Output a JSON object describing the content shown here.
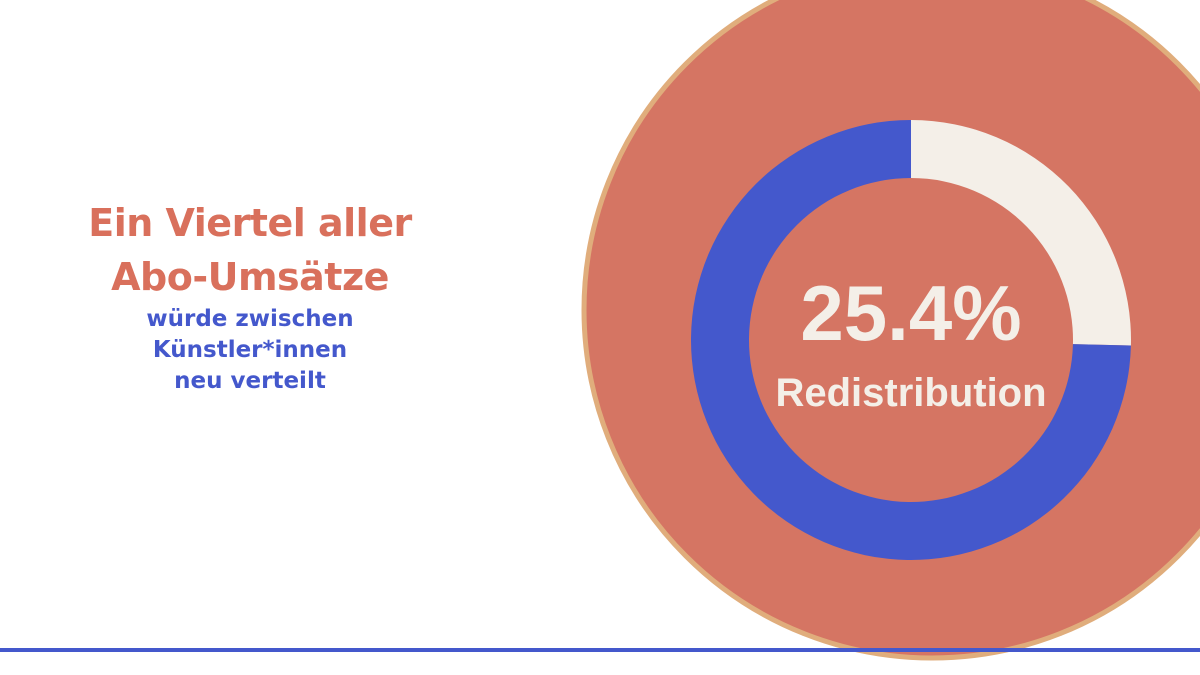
{
  "headline": {
    "line1": "Ein Viertel aller",
    "line2": "Abo-Umsätze",
    "sub1": "würde zwischen",
    "sub2": "Künstler*innen",
    "sub3": "neu verteilt"
  },
  "colors": {
    "headline": "#d9705c",
    "subline": "#4458cc",
    "disc": "#d57563",
    "disc_border": "#e0ad7c",
    "remainder": "#f4efe8",
    "highlight": "#4458cc",
    "center_text": "#f4efe8",
    "rule": "#4458cc"
  },
  "chart_data": {
    "type": "pie",
    "center_value": "25.4%",
    "center_label": "Redistribution",
    "slices": [
      {
        "value": 25.4,
        "color": "#f4efe8"
      },
      {
        "value": 74.6,
        "color": "#4458cc"
      }
    ]
  }
}
